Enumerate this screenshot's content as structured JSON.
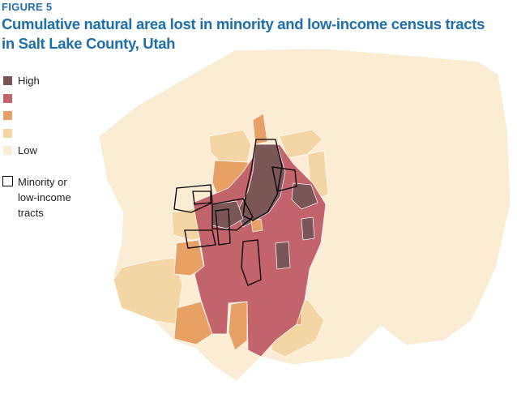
{
  "figure_label": "FIGURE 5",
  "title": [
    "Cumulative natural area lost in minority and low-income census tracts",
    "in Salt Lake County, Utah"
  ],
  "legend": {
    "levels": [
      {
        "label": "High",
        "color": "#7b5656"
      },
      {
        "color": "#c3636b"
      },
      {
        "color": "#e8a165"
      },
      {
        "color": "#f3d6a3"
      },
      {
        "label": "Low",
        "color": "#fbecd3"
      }
    ],
    "outline": {
      "label": "Minority or low-income tracts",
      "color": "#000000"
    }
  }
}
